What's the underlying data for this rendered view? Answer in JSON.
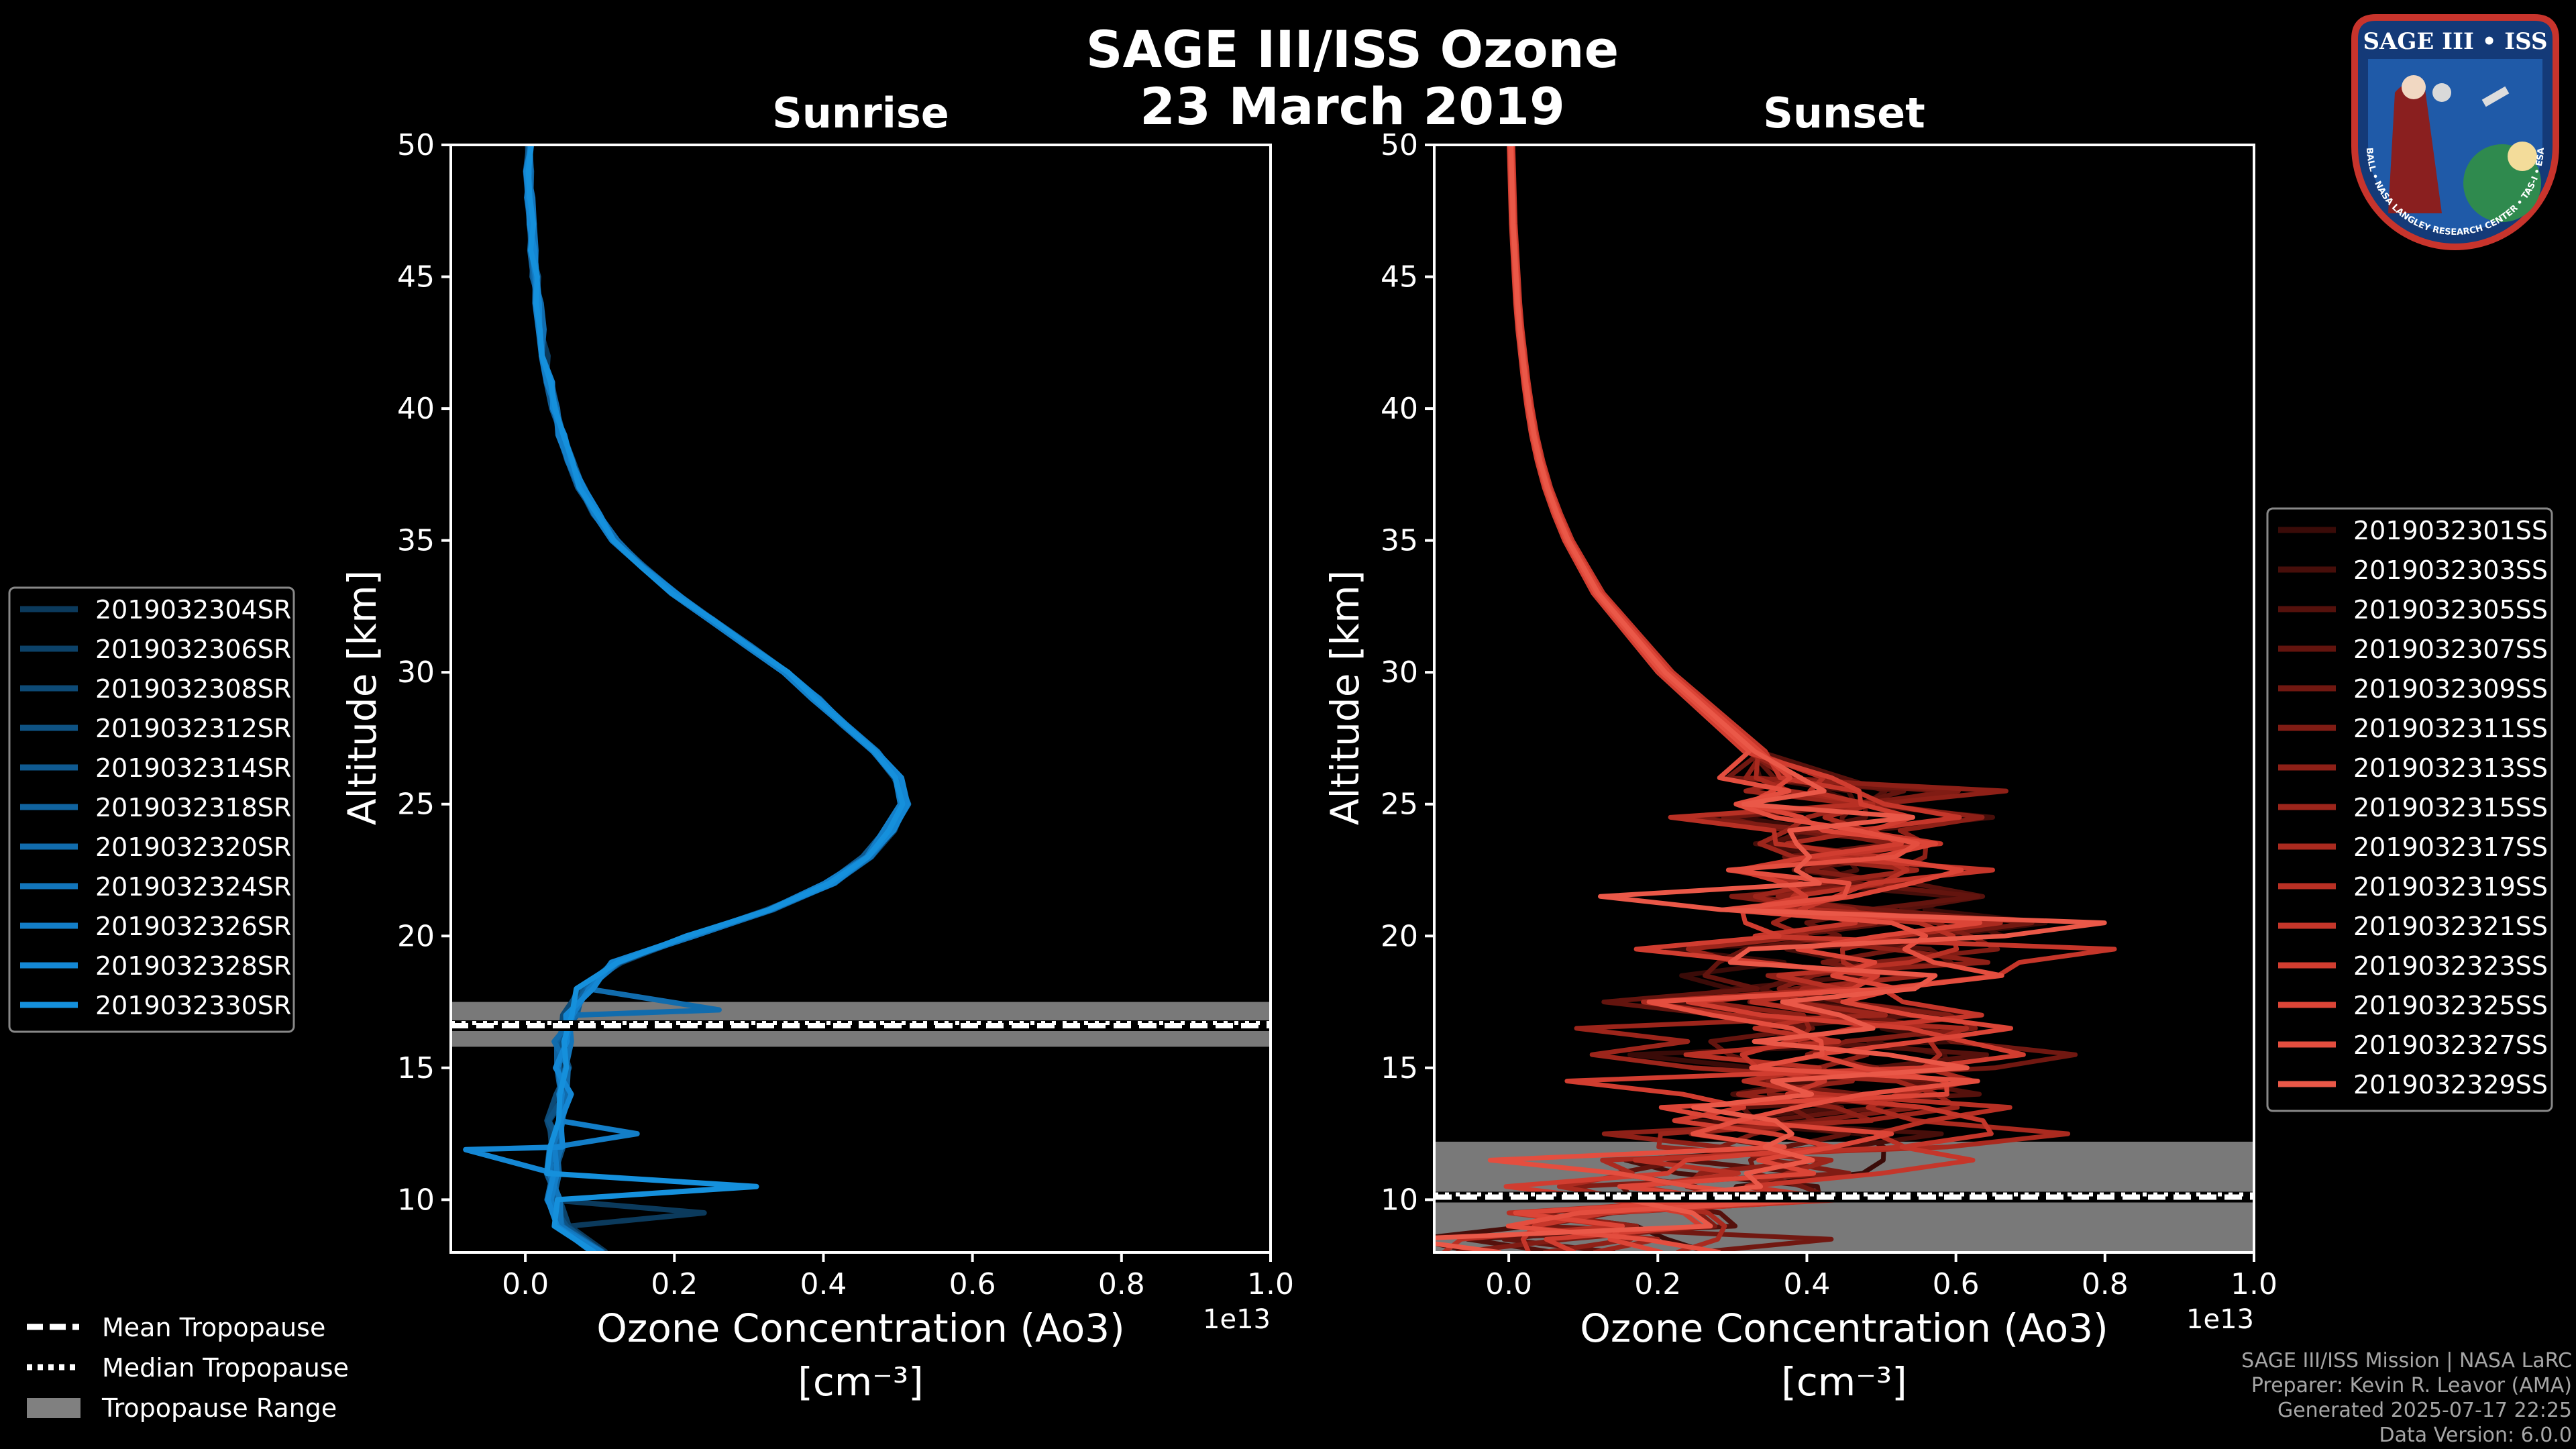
{
  "figure": {
    "title_line1": "SAGE III/ISS Ozone",
    "title_line2": "23 March 2019"
  },
  "chart_data": [
    {
      "type": "line",
      "title": "Sunrise",
      "xlabel": "Ozone Concentration (Ao3)",
      "xlabel_units": "[cm⁻³]",
      "x_multiplier": "1e13",
      "ylabel": "Altitude [km]",
      "xlim": [
        -0.1,
        1.0
      ],
      "ylim": [
        8,
        50
      ],
      "xticks": [
        "0.0",
        "0.2",
        "0.4",
        "0.6",
        "0.8",
        "1.0"
      ],
      "yticks": [
        "10",
        "15",
        "20",
        "25",
        "30",
        "35",
        "40",
        "45",
        "50"
      ],
      "tropopause": {
        "mean": 16.6,
        "median": 16.7,
        "range": [
          15.8,
          17.5
        ]
      },
      "base_profile": {
        "altitude": [
          8,
          9,
          10,
          11,
          12,
          13,
          14,
          15,
          16,
          17,
          18,
          19,
          20,
          21,
          22,
          23,
          24,
          25,
          26,
          27,
          28,
          29,
          30,
          31,
          32,
          33,
          34,
          35,
          36,
          37,
          38,
          39,
          40,
          41,
          42,
          43,
          44,
          45,
          46,
          47,
          48,
          49,
          50
        ],
        "values": [
          0.1,
          0.05,
          0.04,
          0.04,
          0.04,
          0.04,
          0.05,
          0.05,
          0.05,
          0.06,
          0.08,
          0.12,
          0.22,
          0.33,
          0.41,
          0.46,
          0.49,
          0.51,
          0.5,
          0.47,
          0.43,
          0.39,
          0.35,
          0.3,
          0.25,
          0.2,
          0.16,
          0.12,
          0.095,
          0.075,
          0.06,
          0.048,
          0.04,
          0.032,
          0.026,
          0.021,
          0.017,
          0.013,
          0.01,
          0.008,
          0.006,
          0.005,
          0.004
        ]
      },
      "series": [
        {
          "name": "2019032304SR",
          "color": "#0b3a5c",
          "offset": 0.0,
          "spike": {
            "alt": 9.5,
            "value": 0.24
          }
        },
        {
          "name": "2019032306SR",
          "color": "#0c4269",
          "offset": 0.01,
          "spike": null
        },
        {
          "name": "2019032308SR",
          "color": "#0d4a76",
          "offset": -0.01,
          "spike": null
        },
        {
          "name": "2019032312SR",
          "color": "#0e5283",
          "offset": 0.015,
          "spike": null
        },
        {
          "name": "2019032314SR",
          "color": "#0f5a91",
          "offset": -0.015,
          "spike": null
        },
        {
          "name": "2019032318SR",
          "color": "#10639f",
          "offset": 0.005,
          "spike": null
        },
        {
          "name": "2019032320SR",
          "color": "#116cad",
          "offset": -0.005,
          "spike": {
            "alt": 17.2,
            "value": 0.26
          }
        },
        {
          "name": "2019032324SR",
          "color": "#1275bb",
          "offset": 0.02,
          "spike": null
        },
        {
          "name": "2019032326SR",
          "color": "#137ec8",
          "offset": -0.02,
          "spike": {
            "alt": 12.5,
            "value": 0.15
          }
        },
        {
          "name": "2019032328SR",
          "color": "#1487d4",
          "offset": 0.008,
          "spike": {
            "alt": 11.9,
            "value": -0.08
          }
        },
        {
          "name": "2019032330SR",
          "color": "#1590dc",
          "offset": -0.008,
          "spike": {
            "alt": 10.5,
            "value": 0.31
          }
        }
      ]
    },
    {
      "type": "line",
      "title": "Sunset",
      "xlabel": "Ozone Concentration (Ao3)",
      "xlabel_units": "[cm⁻³]",
      "x_multiplier": "1e13",
      "ylabel": "Altitude [km]",
      "xlim": [
        -0.1,
        1.0
      ],
      "ylim": [
        8,
        50
      ],
      "xticks": [
        "0.0",
        "0.2",
        "0.4",
        "0.6",
        "0.8",
        "1.0"
      ],
      "yticks": [
        "10",
        "15",
        "20",
        "25",
        "30",
        "35",
        "40",
        "45",
        "50"
      ],
      "tropopause": {
        "mean": 10.1,
        "median": 10.2,
        "range": [
          8.0,
          12.2
        ]
      },
      "base_profile": {
        "altitude": [
          8,
          9,
          10,
          11,
          12,
          13,
          14,
          15,
          16,
          17,
          18,
          19,
          20,
          21,
          22,
          23,
          24,
          25,
          26,
          27,
          28,
          29,
          30,
          31,
          32,
          33,
          34,
          35,
          36,
          37,
          38,
          39,
          40,
          41,
          42,
          43,
          44,
          45,
          46,
          47,
          48,
          49,
          50
        ],
        "values": [
          0.1,
          0.2,
          0.3,
          0.35,
          0.4,
          0.42,
          0.45,
          0.45,
          0.45,
          0.46,
          0.47,
          0.48,
          0.48,
          0.48,
          0.47,
          0.45,
          0.43,
          0.4,
          0.37,
          0.33,
          0.29,
          0.25,
          0.21,
          0.18,
          0.15,
          0.12,
          0.1,
          0.08,
          0.065,
          0.052,
          0.042,
          0.034,
          0.028,
          0.023,
          0.019,
          0.015,
          0.012,
          0.01,
          0.008,
          0.006,
          0.005,
          0.004,
          0.003
        ]
      },
      "series": [
        {
          "name": "2019032301SS",
          "color": "#3a0b08",
          "offset": 0.02
        },
        {
          "name": "2019032303SS",
          "color": "#470e0a",
          "offset": -0.03
        },
        {
          "name": "2019032305SS",
          "color": "#55110c",
          "offset": 0.05
        },
        {
          "name": "2019032307SS",
          "color": "#63140e",
          "offset": -0.05
        },
        {
          "name": "2019032309SS",
          "color": "#711811",
          "offset": 0.08
        },
        {
          "name": "2019032311SS",
          "color": "#801c14",
          "offset": -0.08
        },
        {
          "name": "2019032313SS",
          "color": "#8e2017",
          "offset": 0.1
        },
        {
          "name": "2019032315SS",
          "color": "#9c251b",
          "offset": -0.1
        },
        {
          "name": "2019032317SS",
          "color": "#aa2a1f",
          "offset": 0.04
        },
        {
          "name": "2019032319SS",
          "color": "#b83024",
          "offset": -0.04
        },
        {
          "name": "2019032321SS",
          "color": "#c5362a",
          "offset": 0.12
        },
        {
          "name": "2019032323SS",
          "color": "#d13d30",
          "offset": -0.12
        },
        {
          "name": "2019032325SS",
          "color": "#dc4537",
          "offset": 0.06
        },
        {
          "name": "2019032327SS",
          "color": "#e44e3f",
          "offset": -0.06
        },
        {
          "name": "2019032329SS",
          "color": "#ea5848",
          "offset": 0.0
        }
      ]
    }
  ],
  "legend_bottom": {
    "mean": "Mean Tropopause",
    "median": "Median Tropopause",
    "range": "Tropopause Range"
  },
  "logo": {
    "top_text": "SAGE III • ISS",
    "ring_text": "BALL • NASA LANGLEY RESEARCH CENTER • TAS-I • ESA"
  },
  "footer": {
    "line1": "SAGE III/ISS Mission | NASA LaRC",
    "line2": "Preparer: Kevin R. Leavor (AMA)",
    "line3": "Generated 2025-07-17 22:25",
    "line4": "Data Version: 6.0.0"
  }
}
